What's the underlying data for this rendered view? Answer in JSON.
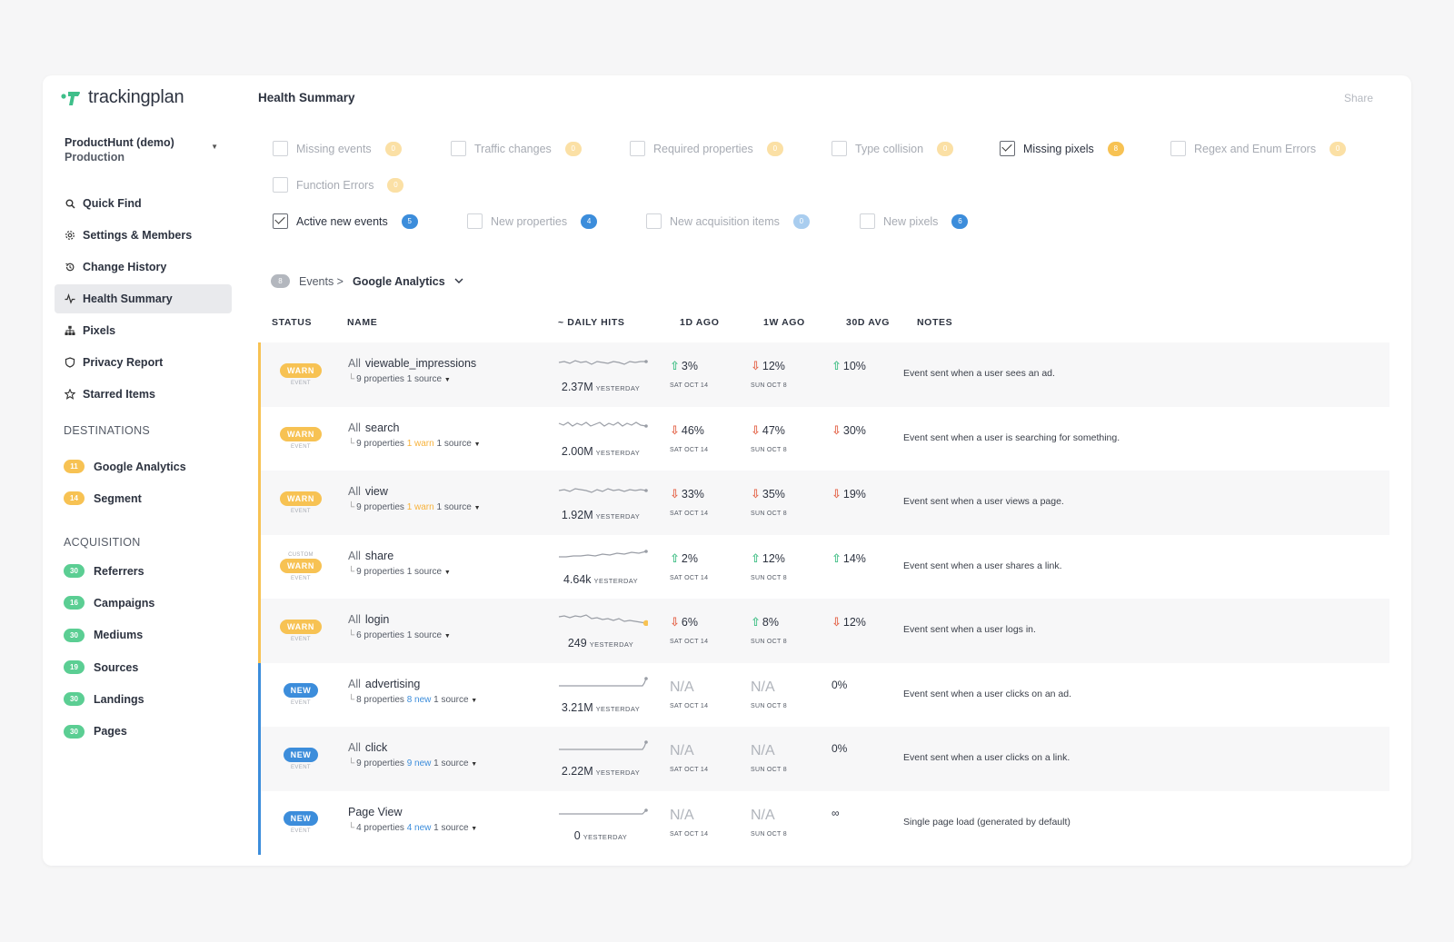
{
  "app": {
    "logo_text": "trackingplan"
  },
  "project": {
    "name": "ProductHunt (demo)",
    "env": "Production"
  },
  "nav": [
    {
      "label": "Quick Find",
      "icon": "search-icon",
      "active": false
    },
    {
      "label": "Settings & Members",
      "icon": "gear-icon",
      "active": false
    },
    {
      "label": "Change History",
      "icon": "history-icon",
      "active": false
    },
    {
      "label": "Health Summary",
      "icon": "pulse-icon",
      "active": true
    },
    {
      "label": "Pixels",
      "icon": "sitemap-icon",
      "active": false
    },
    {
      "label": "Privacy Report",
      "icon": "shield-icon",
      "active": false
    },
    {
      "label": "Starred Items",
      "icon": "star-icon",
      "active": false
    }
  ],
  "destinations": {
    "title": "DESTINATIONS",
    "items": [
      {
        "count": "11",
        "label": "Google Analytics"
      },
      {
        "count": "14",
        "label": "Segment"
      }
    ]
  },
  "acquisition": {
    "title": "ACQUISITION",
    "items": [
      {
        "count": "30",
        "label": "Referrers"
      },
      {
        "count": "16",
        "label": "Campaigns"
      },
      {
        "count": "30",
        "label": "Mediums"
      },
      {
        "count": "19",
        "label": "Sources"
      },
      {
        "count": "30",
        "label": "Landings"
      },
      {
        "count": "30",
        "label": "Pages"
      }
    ]
  },
  "header": {
    "title": "Health Summary",
    "share_label": "Share"
  },
  "filters": [
    {
      "label": "Missing events",
      "count": "0",
      "checked": false,
      "color": "yellow"
    },
    {
      "label": "Traffic changes",
      "count": "0",
      "checked": false,
      "color": "yellow"
    },
    {
      "label": "Required properties",
      "count": "0",
      "checked": false,
      "color": "yellow"
    },
    {
      "label": "Type collision",
      "count": "0",
      "checked": false,
      "color": "yellow"
    },
    {
      "label": "Missing pixels",
      "count": "8",
      "checked": true,
      "color": "yellow"
    },
    {
      "label": "Regex and Enum Errors",
      "count": "0",
      "checked": false,
      "color": "yellow"
    },
    {
      "label": "Function Errors",
      "count": "0",
      "checked": false,
      "color": "yellow"
    },
    {
      "label": "Active new events",
      "count": "5",
      "checked": true,
      "color": "blue"
    },
    {
      "label": "New properties",
      "count": "4",
      "checked": false,
      "color": "blue"
    },
    {
      "label": "New acquisition items",
      "count": "0",
      "checked": false,
      "color": "blue"
    },
    {
      "label": "New pixels",
      "count": "6",
      "checked": false,
      "color": "blue"
    }
  ],
  "breadcrumb": {
    "count": "8",
    "events": "Events >",
    "destination": "Google Analytics"
  },
  "columns": [
    "STATUS",
    "NAME",
    "~ DAILY HITS",
    "1D AGO",
    "1W AGO",
    "30D AVG",
    "NOTES"
  ],
  "yesterday_label": "YESTERDAY",
  "day_labels": {
    "d1": "SAT OCT 14",
    "w1": "SUN OCT 8"
  },
  "rows": [
    {
      "tag": "WARN",
      "custom": "",
      "kind": "EVENT",
      "prefix": "All",
      "name": "viewable_impressions",
      "props": "9 properties",
      "extra": "",
      "source": "1 source",
      "hits": "2.37M",
      "d1": "3%",
      "d1dir": "up",
      "w1": "12%",
      "w1dir": "down",
      "avg": "10%",
      "avgdir": "up",
      "note": "Event sent when a user sees an ad."
    },
    {
      "tag": "WARN",
      "custom": "",
      "kind": "EVENT",
      "prefix": "All",
      "name": "search",
      "props": "9 properties",
      "extra": "1 warn",
      "source": "1 source",
      "hits": "2.00M",
      "d1": "46%",
      "d1dir": "down",
      "w1": "47%",
      "w1dir": "down",
      "avg": "30%",
      "avgdir": "down",
      "note": "Event sent when a user is searching for something."
    },
    {
      "tag": "WARN",
      "custom": "",
      "kind": "EVENT",
      "prefix": "All",
      "name": "view",
      "props": "9 properties",
      "extra": "1 warn",
      "source": "1 source",
      "hits": "1.92M",
      "d1": "33%",
      "d1dir": "down",
      "w1": "35%",
      "w1dir": "down",
      "avg": "19%",
      "avgdir": "down",
      "note": "Event sent when a user views a page."
    },
    {
      "tag": "WARN",
      "custom": "CUSTOM",
      "kind": "EVENT",
      "prefix": "All",
      "name": "share",
      "props": "9 properties",
      "extra": "",
      "source": "1 source",
      "hits": "4.64k",
      "d1": "2%",
      "d1dir": "up",
      "w1": "12%",
      "w1dir": "up",
      "avg": "14%",
      "avgdir": "up",
      "note": "Event sent when a user shares a link."
    },
    {
      "tag": "WARN",
      "custom": "",
      "kind": "EVENT",
      "prefix": "All",
      "name": "login",
      "props": "6 properties",
      "extra": "",
      "source": "1 source",
      "hits": "249",
      "d1": "6%",
      "d1dir": "down",
      "w1": "8%",
      "w1dir": "up",
      "avg": "12%",
      "avgdir": "down",
      "note": "Event sent when a user logs in."
    },
    {
      "tag": "NEW",
      "custom": "",
      "kind": "EVENT",
      "prefix": "All",
      "name": "advertising",
      "props": "8 properties",
      "extra": "8 new",
      "source": "1 source",
      "hits": "3.21M",
      "d1": "N/A",
      "d1dir": "na",
      "w1": "N/A",
      "w1dir": "na",
      "avg": "0%",
      "avgdir": "plain",
      "note": "Event sent when a user clicks on an ad."
    },
    {
      "tag": "NEW",
      "custom": "",
      "kind": "EVENT",
      "prefix": "All",
      "name": "click",
      "props": "9 properties",
      "extra": "9 new",
      "source": "1 source",
      "hits": "2.22M",
      "d1": "N/A",
      "d1dir": "na",
      "w1": "N/A",
      "w1dir": "na",
      "avg": "0%",
      "avgdir": "plain",
      "note": "Event sent when a user clicks on a link."
    },
    {
      "tag": "NEW",
      "custom": "",
      "kind": "EVENT",
      "prefix": "",
      "name": "Page View",
      "props": "4 properties",
      "extra": "4 new",
      "source": "1 source",
      "hits": "0",
      "d1": "N/A",
      "d1dir": "na",
      "w1": "N/A",
      "w1dir": "na",
      "avg": "∞",
      "avgdir": "plain",
      "note": "Single page load (generated by default)"
    }
  ]
}
